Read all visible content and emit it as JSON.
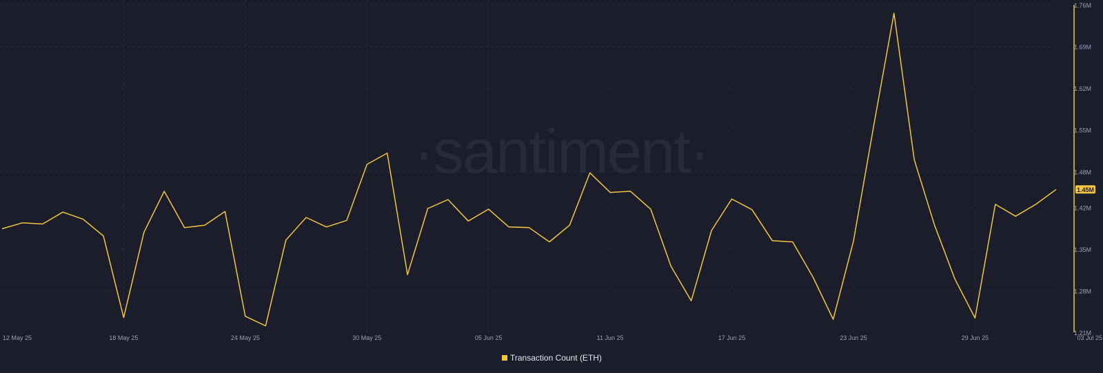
{
  "watermark": "·santiment·",
  "chart_data": {
    "type": "line",
    "x_ticks": [
      "12 May 25",
      "18 May 25",
      "24 May 25",
      "30 May 25",
      "05 Jun 25",
      "11 Jun 25",
      "17 Jun 25",
      "23 Jun 25",
      "29 Jun 25",
      "03 Jul 25"
    ],
    "y_ticks": [
      "1.21M",
      "1.28M",
      "1.35M",
      "1.42M",
      "1.48M",
      "1.55M",
      "1.62M",
      "1.69M",
      "1.76M"
    ],
    "ylim": [
      1.21,
      1.76
    ],
    "y_unit": "M",
    "grid": true,
    "legend_position": "bottom-center",
    "current_value_label": "1.45M",
    "series": [
      {
        "name": "Transaction Count (ETH)",
        "color": "#f3c73f",
        "x": [
          "12 May 25",
          "13 May 25",
          "14 May 25",
          "15 May 25",
          "16 May 25",
          "17 May 25",
          "18 May 25",
          "19 May 25",
          "20 May 25",
          "21 May 25",
          "22 May 25",
          "23 May 25",
          "24 May 25",
          "25 May 25",
          "26 May 25",
          "27 May 25",
          "28 May 25",
          "29 May 25",
          "30 May 25",
          "31 May 25",
          "01 Jun 25",
          "02 Jun 25",
          "03 Jun 25",
          "04 Jun 25",
          "05 Jun 25",
          "06 Jun 25",
          "07 Jun 25",
          "08 Jun 25",
          "09 Jun 25",
          "10 Jun 25",
          "11 Jun 25",
          "12 Jun 25",
          "13 Jun 25",
          "14 Jun 25",
          "15 Jun 25",
          "16 Jun 25",
          "17 Jun 25",
          "18 Jun 25",
          "19 Jun 25",
          "20 Jun 25",
          "21 Jun 25",
          "22 Jun 25",
          "23 Jun 25",
          "24 Jun 25",
          "25 Jun 25",
          "26 Jun 25",
          "27 Jun 25",
          "28 Jun 25",
          "29 Jun 25",
          "30 Jun 25",
          "01 Jul 25",
          "02 Jul 25",
          "03 Jul 25"
        ],
        "values": [
          1.384,
          1.394,
          1.392,
          1.412,
          1.4,
          1.372,
          1.235,
          1.378,
          1.447,
          1.386,
          1.39,
          1.413,
          1.237,
          1.221,
          1.365,
          1.403,
          1.387,
          1.398,
          1.492,
          1.511,
          1.307,
          1.418,
          1.433,
          1.397,
          1.417,
          1.387,
          1.386,
          1.362,
          1.39,
          1.478,
          1.445,
          1.447,
          1.417,
          1.321,
          1.263,
          1.381,
          1.434,
          1.416,
          1.364,
          1.362,
          1.303,
          1.232,
          1.363,
          1.557,
          1.746,
          1.5,
          1.39,
          1.3,
          1.234,
          1.425,
          1.405,
          1.425,
          1.45
        ]
      }
    ]
  }
}
